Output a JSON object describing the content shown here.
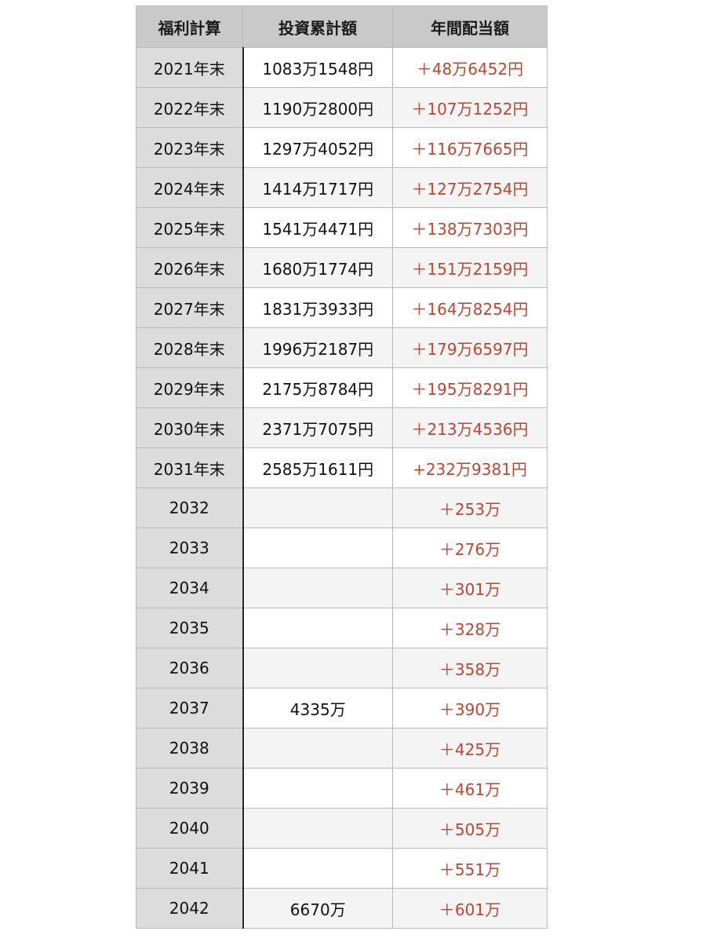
{
  "table": {
    "headers": [
      "福利計算",
      "投資累計額",
      "年間配当額"
    ],
    "rows": [
      {
        "year": "2021年末",
        "investment": "1083万1548円",
        "dividend": "＋48万6452円"
      },
      {
        "year": "2022年末",
        "investment": "1190万2800円",
        "dividend": "＋107万1252円"
      },
      {
        "year": "2023年末",
        "investment": "1297万4052円",
        "dividend": "＋116万7665円"
      },
      {
        "year": "2024年末",
        "investment": "1414万1717円",
        "dividend": "＋127万2754円"
      },
      {
        "year": "2025年末",
        "investment": "1541万4471円",
        "dividend": "＋138万7303円"
      },
      {
        "year": "2026年末",
        "investment": "1680万1774円",
        "dividend": "＋151万2159円"
      },
      {
        "year": "2027年末",
        "investment": "1831万3933円",
        "dividend": "＋164万8254円"
      },
      {
        "year": "2028年末",
        "investment": "1996万2187円",
        "dividend": "＋179万6597円"
      },
      {
        "year": "2029年末",
        "investment": "2175万8784円",
        "dividend": "＋195万8291円"
      },
      {
        "year": "2030年末",
        "investment": "2371万7075円",
        "dividend": "＋213万4536円"
      },
      {
        "year": "2031年末",
        "investment": "2585万1611円",
        "dividend": "+232万9381円"
      },
      {
        "year": "2032",
        "investment": "",
        "dividend": "＋253万"
      },
      {
        "year": "2033",
        "investment": "",
        "dividend": "＋276万"
      },
      {
        "year": "2034",
        "investment": "",
        "dividend": "＋301万"
      },
      {
        "year": "2035",
        "investment": "",
        "dividend": "＋328万"
      },
      {
        "year": "2036",
        "investment": "",
        "dividend": "＋358万"
      },
      {
        "year": "2037",
        "investment": "4335万",
        "dividend": "＋390万"
      },
      {
        "year": "2038",
        "investment": "",
        "dividend": "＋425万"
      },
      {
        "year": "2039",
        "investment": "",
        "dividend": "＋461万"
      },
      {
        "year": "2040",
        "investment": "",
        "dividend": "＋505万"
      },
      {
        "year": "2041",
        "investment": "",
        "dividend": "＋551万"
      },
      {
        "year": "2042",
        "investment": "6670万",
        "dividend": "＋601万"
      }
    ]
  },
  "colors": {
    "header_bg": "#c9c9c9",
    "year_col_bg": "#dcdcdc",
    "dividend_text": "#c2452f"
  }
}
